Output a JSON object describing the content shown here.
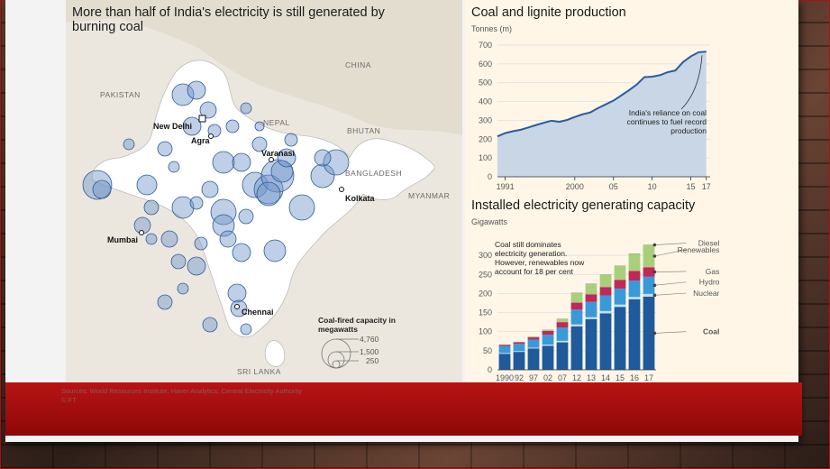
{
  "map": {
    "title": "More than half of India's electricity is still generated by burning coal",
    "labels": {
      "pakistan": "PAKISTAN",
      "china": "CHINA",
      "nepal": "NEPAL",
      "bhutan": "BHUTAN",
      "bangladesh": "BANGLADESH",
      "myanmar": "MYANMAR",
      "sri_lanka": "SRI LANKA"
    },
    "cities": {
      "new_delhi": "New Delhi",
      "agra": "Agra",
      "varanasi": "Varanasi",
      "kolkata": "Kolkata",
      "mumbai": "Mumbai",
      "chennai": "Chennai"
    },
    "legend": {
      "title": "Coal-fired capacity in megawatts",
      "values": [
        "4,760",
        "1,500",
        "250"
      ]
    }
  },
  "sources": "Sources: World Resources Institute; Haver Analytics; Central Electricity Authority",
  "credit": "© FT",
  "colors": {
    "area": "#c8d6e5",
    "line": "#2a5d9f",
    "coal": "#1f5a9a",
    "nuclear": "#bfe0ef",
    "hydro": "#3a9ad9",
    "gas": "#c0285a",
    "renewables": "#a9cf7a",
    "diesel": "#8a8a8a",
    "banner": "#a40e0e"
  },
  "chart_data": [
    {
      "type": "area",
      "title": "Coal and lignite production",
      "ylabel": "Tonnes (m)",
      "ylim": [
        0,
        700
      ],
      "yticks": [
        0,
        100,
        200,
        300,
        400,
        500,
        600,
        700
      ],
      "xticklabels": [
        "1991",
        "2000",
        "05",
        "10",
        "15",
        "17"
      ],
      "xtick_years": [
        1991,
        2000,
        2005,
        2010,
        2015,
        2017
      ],
      "annotation": "India's reliance on coal continues to fuel record production",
      "x": [
        1990,
        1991,
        1992,
        1993,
        1994,
        1995,
        1996,
        1997,
        1998,
        1999,
        2000,
        2001,
        2002,
        2003,
        2004,
        2005,
        2006,
        2007,
        2008,
        2009,
        2010,
        2011,
        2012,
        2013,
        2014,
        2015,
        2016,
        2017
      ],
      "values": [
        215,
        232,
        242,
        250,
        262,
        275,
        287,
        298,
        292,
        302,
        318,
        332,
        342,
        365,
        385,
        405,
        432,
        460,
        490,
        530,
        532,
        540,
        556,
        565,
        610,
        640,
        662,
        665
      ]
    },
    {
      "type": "bar",
      "stacked": true,
      "title": "Installed electricity generating capacity",
      "ylabel": "Gigawatts",
      "ylim": [
        0,
        350
      ],
      "yticks": [
        0,
        50,
        100,
        150,
        200,
        250,
        300
      ],
      "categories": [
        "1990",
        "92",
        "97",
        "02",
        "07",
        "12",
        "13",
        "14",
        "15",
        "16",
        "17"
      ],
      "annotation": "Coal still dominates electricity generation. However, renewables now account for 18 per cent",
      "series": [
        {
          "name": "Coal",
          "values": [
            42,
            47,
            56,
            63,
            72,
            114,
            133,
            148,
            165,
            185,
            192
          ]
        },
        {
          "name": "Nuclear",
          "values": [
            2,
            2,
            2,
            3,
            4,
            5,
            5,
            6,
            6,
            6,
            7
          ]
        },
        {
          "name": "Hydro",
          "values": [
            18,
            19,
            21,
            26,
            35,
            39,
            40,
            41,
            42,
            43,
            45
          ]
        },
        {
          "name": "Gas",
          "values": [
            3,
            4,
            6,
            10,
            14,
            18,
            20,
            22,
            23,
            25,
            25
          ]
        },
        {
          "name": "Renewables",
          "values": [
            0,
            0,
            1,
            2,
            8,
            25,
            27,
            32,
            36,
            45,
            58
          ]
        },
        {
          "name": "Diesel",
          "values": [
            1,
            1,
            1,
            1,
            1,
            1,
            1,
            1,
            1,
            1,
            1
          ]
        }
      ]
    }
  ]
}
